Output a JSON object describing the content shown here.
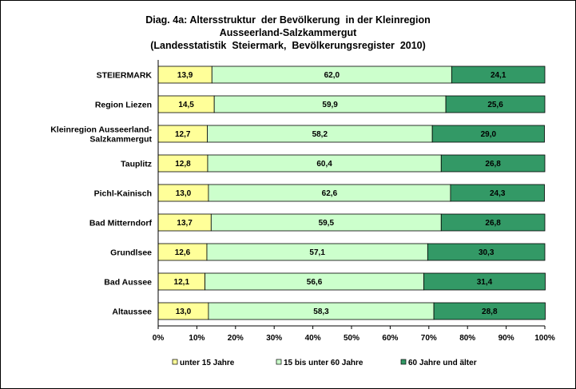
{
  "chart_data": {
    "type": "bar",
    "orientation": "horizontal",
    "stacked": "percent",
    "title": [
      "Diag. 4a: Altersstruktur  der Bevölkerung  in der Kleinregion",
      "Ausseerland-Salzkammergut",
      "(Landesstatistik  Steiermark,  Bevölkerungsregister  2010)"
    ],
    "categories": [
      [
        "STEIERMARK"
      ],
      [
        "Region Liezen"
      ],
      [
        "Kleinregion Ausseerland-",
        "Salzkammergut"
      ],
      [
        "Tauplitz"
      ],
      [
        "Pichl-Kainisch"
      ],
      [
        "Bad Mitterndorf"
      ],
      [
        "Grundlsee"
      ],
      [
        "Bad Aussee"
      ],
      [
        "Altaussee"
      ]
    ],
    "series": [
      {
        "name": "unter 15 Jahre",
        "color": "#ffff99",
        "values": [
          13.9,
          14.5,
          12.7,
          12.8,
          13.0,
          13.7,
          12.6,
          12.1,
          13.0
        ],
        "labels": [
          "13,9",
          "14,5",
          "12,7",
          "12,8",
          "13,0",
          "13,7",
          "12,6",
          "12,1",
          "13,0"
        ]
      },
      {
        "name": "15 bis unter 60 Jahre",
        "color": "#ccffcc",
        "values": [
          62.0,
          59.9,
          58.2,
          60.4,
          62.6,
          59.5,
          57.1,
          56.6,
          58.3
        ],
        "labels": [
          "62,0",
          "59,9",
          "58,2",
          "60,4",
          "62,6",
          "59,5",
          "57,1",
          "56,6",
          "58,3"
        ]
      },
      {
        "name": "60 Jahre und älter",
        "color": "#339966",
        "values": [
          24.1,
          25.6,
          29.0,
          26.8,
          24.3,
          26.8,
          30.3,
          31.4,
          28.8
        ],
        "labels": [
          "24,1",
          "25,6",
          "29,0",
          "26,8",
          "24,3",
          "26,8",
          "30,3",
          "31,4",
          "28,8"
        ]
      }
    ],
    "xticks": [
      "0%",
      "10%",
      "20%",
      "30%",
      "40%",
      "50%",
      "60%",
      "70%",
      "80%",
      "90%",
      "100%"
    ],
    "xlim": [
      0,
      100
    ],
    "grid": false,
    "legend": "bottom"
  }
}
